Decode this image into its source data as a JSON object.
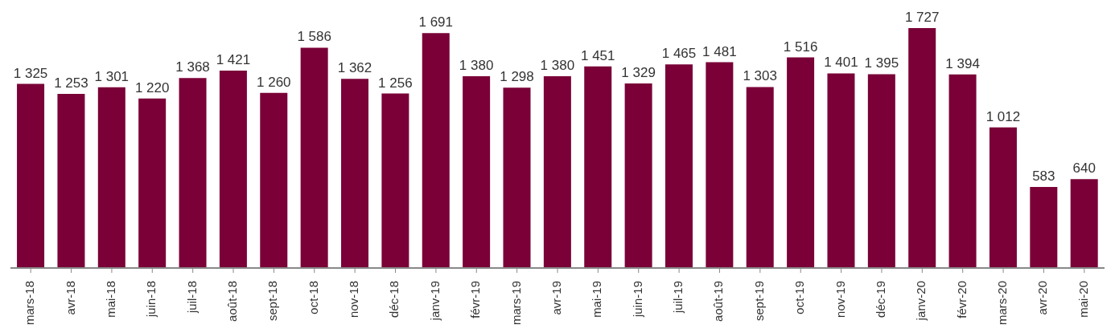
{
  "chart_data": {
    "type": "bar",
    "categories": [
      "mars-18",
      "avr-18",
      "mai-18",
      "juin-18",
      "juil-18",
      "août-18",
      "sept-18",
      "oct-18",
      "nov-18",
      "déc-18",
      "janv-19",
      "févr-19",
      "mars-19",
      "avr-19",
      "mai-19",
      "juin-19",
      "juil-19",
      "août-19",
      "sept-19",
      "oct-19",
      "nov-19",
      "déc-19",
      "janv-20",
      "févr-20",
      "mars-20",
      "avr-20",
      "mai-20"
    ],
    "values": [
      1325,
      1253,
      1301,
      1220,
      1368,
      1421,
      1260,
      1586,
      1362,
      1256,
      1691,
      1380,
      1298,
      1380,
      1451,
      1329,
      1465,
      1481,
      1303,
      1516,
      1401,
      1395,
      1727,
      1394,
      1012,
      583,
      640
    ],
    "value_labels": [
      "1 325",
      "1 253",
      "1 301",
      "1 220",
      "1 368",
      "1 421",
      "1 260",
      "1 586",
      "1 362",
      "1 256",
      "1 691",
      "1 380",
      "1 298",
      "1 380",
      "1 451",
      "1 329",
      "1 465",
      "1 481",
      "1 303",
      "1 516",
      "1 401",
      "1 395",
      "1 727",
      "1 394",
      "1 012",
      "583",
      "640"
    ],
    "color": "#7a0037",
    "tick_labels": "x"
  }
}
